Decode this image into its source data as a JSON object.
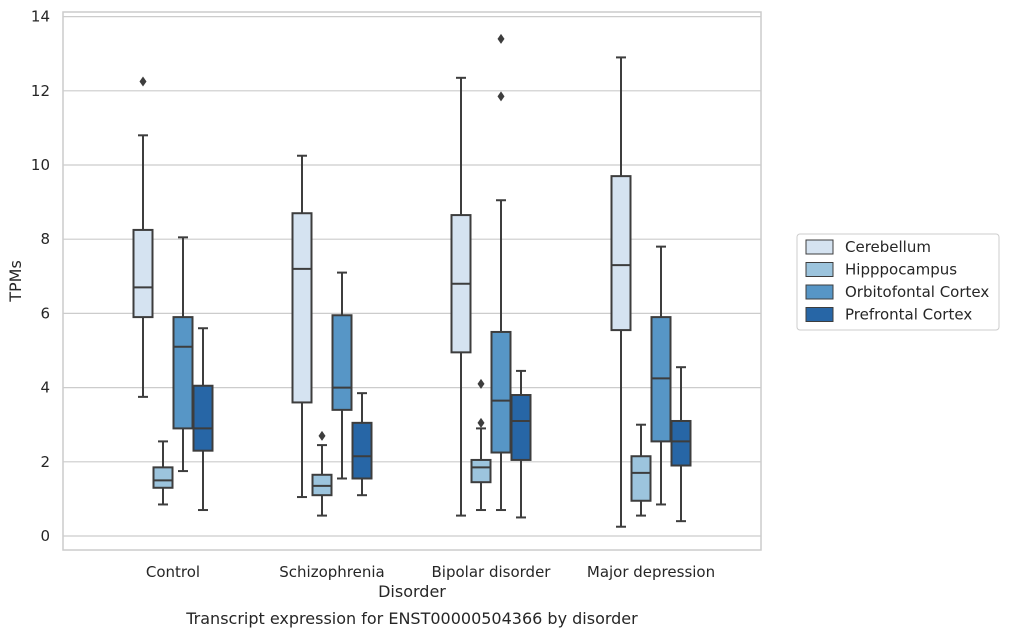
{
  "caption": "Transcript expression for ENST00000504366 by disorder",
  "chart_data": {
    "type": "box",
    "xlabel": "Disorder",
    "ylabel": "TPMs",
    "ylim": [
      -0.4,
      14.1
    ],
    "yticks": [
      0,
      2,
      4,
      6,
      8,
      10,
      12,
      14
    ],
    "grid": "horizontal",
    "legend_position": "right",
    "categories": [
      "Control",
      "Schizophrenia",
      "Bipolar disorder",
      "Major depression"
    ],
    "series": [
      {
        "name": "Cerebellum",
        "color": "#d5e3f1",
        "boxes": [
          {
            "whisker_low": 3.75,
            "q1": 5.9,
            "median": 6.7,
            "q3": 8.25,
            "whisker_high": 10.8,
            "outliers": [
              12.25
            ]
          },
          {
            "whisker_low": 1.05,
            "q1": 3.6,
            "median": 7.2,
            "q3": 8.7,
            "whisker_high": 10.25,
            "outliers": []
          },
          {
            "whisker_low": 0.55,
            "q1": 4.95,
            "median": 6.8,
            "q3": 8.65,
            "whisker_high": 12.35,
            "outliers": []
          },
          {
            "whisker_low": 0.25,
            "q1": 5.55,
            "median": 7.3,
            "q3": 9.7,
            "whisker_high": 12.9,
            "outliers": []
          }
        ]
      },
      {
        "name": "Hipppocampus",
        "color": "#9cc4dd",
        "boxes": [
          {
            "whisker_low": 0.85,
            "q1": 1.3,
            "median": 1.5,
            "q3": 1.85,
            "whisker_high": 2.55,
            "outliers": []
          },
          {
            "whisker_low": 0.55,
            "q1": 1.1,
            "median": 1.35,
            "q3": 1.65,
            "whisker_high": 2.45,
            "outliers": [
              2.7
            ]
          },
          {
            "whisker_low": 0.7,
            "q1": 1.45,
            "median": 1.85,
            "q3": 2.05,
            "whisker_high": 2.9,
            "outliers": [
              3.05,
              4.1
            ]
          },
          {
            "whisker_low": 0.55,
            "q1": 0.95,
            "median": 1.7,
            "q3": 2.15,
            "whisker_high": 3.0,
            "outliers": []
          }
        ]
      },
      {
        "name": "Orbitofontal Cortex",
        "color": "#5796c6",
        "boxes": [
          {
            "whisker_low": 1.75,
            "q1": 2.9,
            "median": 5.1,
            "q3": 5.9,
            "whisker_high": 8.05,
            "outliers": []
          },
          {
            "whisker_low": 1.55,
            "q1": 3.4,
            "median": 4.0,
            "q3": 5.95,
            "whisker_high": 7.1,
            "outliers": []
          },
          {
            "whisker_low": 0.7,
            "q1": 2.25,
            "median": 3.65,
            "q3": 5.5,
            "whisker_high": 9.05,
            "outliers": [
              11.85,
              13.4
            ]
          },
          {
            "whisker_low": 0.85,
            "q1": 2.55,
            "median": 4.25,
            "q3": 5.9,
            "whisker_high": 7.8,
            "outliers": []
          }
        ]
      },
      {
        "name": "Prefrontal Cortex",
        "color": "#2766a6",
        "boxes": [
          {
            "whisker_low": 0.7,
            "q1": 2.3,
            "median": 2.9,
            "q3": 4.05,
            "whisker_high": 5.6,
            "outliers": []
          },
          {
            "whisker_low": 1.1,
            "q1": 1.55,
            "median": 2.15,
            "q3": 3.05,
            "whisker_high": 3.85,
            "outliers": []
          },
          {
            "whisker_low": 0.5,
            "q1": 2.05,
            "median": 3.1,
            "q3": 3.8,
            "whisker_high": 4.45,
            "outliers": []
          },
          {
            "whisker_low": 0.4,
            "q1": 1.9,
            "median": 2.55,
            "q3": 3.1,
            "whisker_high": 4.55,
            "outliers": []
          }
        ]
      }
    ]
  }
}
